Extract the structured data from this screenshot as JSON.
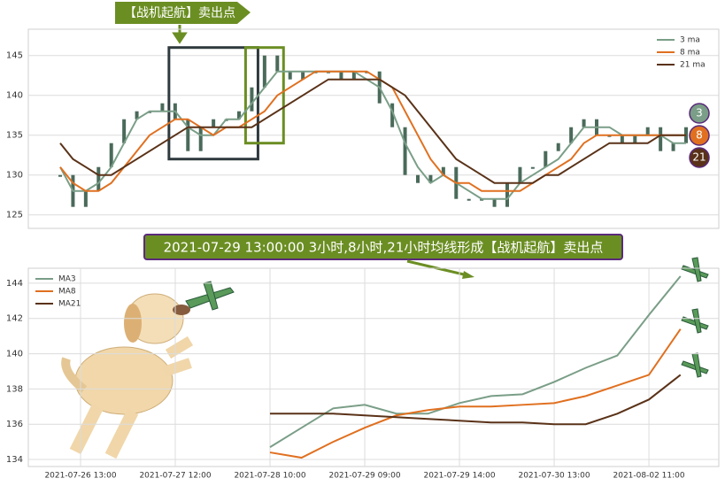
{
  "chart_data": [
    {
      "type": "candle_ma",
      "annotation": "【战机起航】卖出点",
      "price": [
        130,
        126,
        128,
        131,
        134,
        137,
        138,
        138,
        139,
        137,
        133,
        136,
        137,
        137,
        138,
        141,
        145,
        143,
        142,
        143,
        143,
        143,
        142,
        143,
        143,
        139,
        136,
        130,
        129,
        130,
        131,
        127,
        127,
        127,
        126,
        129,
        131,
        131,
        133,
        134,
        136,
        137,
        135,
        135,
        134,
        135,
        136,
        133,
        134,
        136
      ],
      "price_color": "#4a6a5a",
      "series": [
        {
          "name": "3 ma",
          "badge": "3",
          "color": "#7a9e87",
          "values": [
            131,
            128,
            128,
            129,
            131,
            134,
            137,
            138,
            138,
            138,
            136,
            135,
            135,
            137,
            137,
            139,
            141,
            143,
            143,
            143,
            143,
            143,
            143,
            143,
            142,
            141,
            138,
            134,
            131,
            129,
            130,
            129,
            128,
            127,
            127,
            127,
            129,
            130,
            131,
            132,
            134,
            136,
            136,
            136,
            135,
            135,
            135,
            135,
            134,
            134
          ]
        },
        {
          "name": "8 ma",
          "badge": "8",
          "color": "#e07020",
          "values": [
            131,
            129,
            128,
            128,
            129,
            131,
            133,
            135,
            136,
            137,
            137,
            136,
            135,
            136,
            136,
            137,
            138,
            140,
            141,
            142,
            143,
            143,
            143,
            143,
            143,
            142,
            141,
            138,
            135,
            132,
            130,
            129,
            129,
            128,
            128,
            128,
            128,
            129,
            130,
            131,
            132,
            134,
            135,
            135,
            135,
            135,
            135,
            135,
            135,
            135
          ]
        },
        {
          "name": "21 ma",
          "badge": "21",
          "color": "#5a3218",
          "values": [
            134,
            132,
            131,
            130,
            130,
            131,
            132,
            133,
            134,
            135,
            136,
            136,
            136,
            136,
            136,
            136,
            137,
            138,
            139,
            140,
            141,
            142,
            142,
            142,
            142,
            142,
            141,
            140,
            138,
            136,
            134,
            132,
            131,
            130,
            129,
            129,
            129,
            129,
            130,
            130,
            131,
            132,
            133,
            134,
            134,
            134,
            134,
            135,
            135,
            135
          ]
        }
      ],
      "ylim": [
        123.3,
        148.3
      ],
      "yticks": [
        125,
        130,
        135,
        140,
        145
      ],
      "grid": true,
      "legend": "upper right"
    },
    {
      "type": "line",
      "annotation": "2021-07-29 13:00:00 3小时,8小时,21小时均线形成【战机起航】卖出点",
      "categories": [
        "2021-07-26 13:00",
        null,
        null,
        "2021-07-27 12:00",
        null,
        null,
        "2021-07-28 10:00",
        null,
        null,
        "2021-07-29 09:00",
        null,
        null,
        "2021-07-29 14:00",
        null,
        null,
        "2021-07-30 13:00",
        null,
        null,
        "2021-08-02 11:00",
        null
      ],
      "series": [
        {
          "name": "MA3",
          "color": "#7a9e87",
          "values": [
            null,
            null,
            null,
            null,
            null,
            null,
            134.7,
            135.8,
            136.9,
            137.1,
            136.6,
            136.6,
            137.2,
            137.6,
            137.7,
            138.4,
            139.2,
            139.9,
            142.2,
            144.4
          ]
        },
        {
          "name": "MA8",
          "color": "#e07020",
          "values": [
            null,
            null,
            null,
            null,
            null,
            null,
            134.4,
            134.1,
            135.0,
            135.8,
            136.5,
            136.8,
            137.0,
            137.0,
            137.1,
            137.2,
            137.6,
            138.2,
            138.8,
            141.4
          ]
        },
        {
          "name": "MA21",
          "color": "#5a3218",
          "values": [
            null,
            null,
            null,
            null,
            null,
            null,
            136.6,
            136.6,
            136.6,
            136.5,
            136.4,
            136.3,
            136.2,
            136.1,
            136.1,
            136.0,
            136.0,
            136.6,
            137.4,
            138.8
          ]
        }
      ],
      "ylim": [
        133.6,
        144.85
      ],
      "yticks": [
        134,
        136,
        138,
        140,
        142,
        144
      ],
      "grid": true,
      "legend": "upper left"
    }
  ]
}
